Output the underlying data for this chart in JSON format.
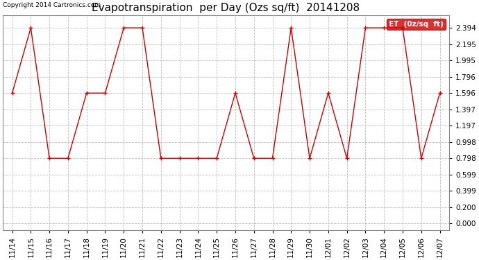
{
  "title": "Evapotranspiration  per Day (Ozs sq/ft)  20141208",
  "copyright_text": "Copyright 2014 Cartronics.com",
  "legend_label": "ET  (0z/sq  ft)",
  "x_labels": [
    "11/14",
    "11/15",
    "11/16",
    "11/17",
    "11/18",
    "11/19",
    "11/20",
    "11/21",
    "11/22",
    "11/23",
    "11/24",
    "11/25",
    "11/26",
    "11/27",
    "11/28",
    "11/29",
    "11/30",
    "12/01",
    "12/02",
    "12/03",
    "12/04",
    "12/05",
    "12/06",
    "12/07"
  ],
  "y_values": [
    1.596,
    2.394,
    0.798,
    0.798,
    1.596,
    1.596,
    2.394,
    2.394,
    0.798,
    0.798,
    0.798,
    0.798,
    1.596,
    0.798,
    0.798,
    2.394,
    0.798,
    1.596,
    0.798,
    2.394,
    2.394,
    2.394,
    0.798,
    1.596
  ],
  "y_ticks": [
    0.0,
    0.2,
    0.399,
    0.599,
    0.798,
    0.998,
    1.197,
    1.397,
    1.596,
    1.796,
    1.995,
    2.195,
    2.394
  ],
  "y_tick_labels": [
    "0.000",
    "0.200",
    "0.399",
    "0.599",
    "0.798",
    "0.998",
    "1.197",
    "1.397",
    "1.596",
    "1.796",
    "1.995",
    "2.195",
    "2.394"
  ],
  "line_color": "#cc0000",
  "marker_color": "#cc0000",
  "bg_color": "#ffffff",
  "grid_color": "#bbbbbb",
  "legend_bg": "#cc0000",
  "legend_text_color": "#ffffff",
  "title_fontsize": 11,
  "copyright_fontsize": 6.5,
  "tick_fontsize": 7.5,
  "ylim": [
    -0.08,
    2.55
  ],
  "xlim": [
    -0.5,
    23.5
  ]
}
